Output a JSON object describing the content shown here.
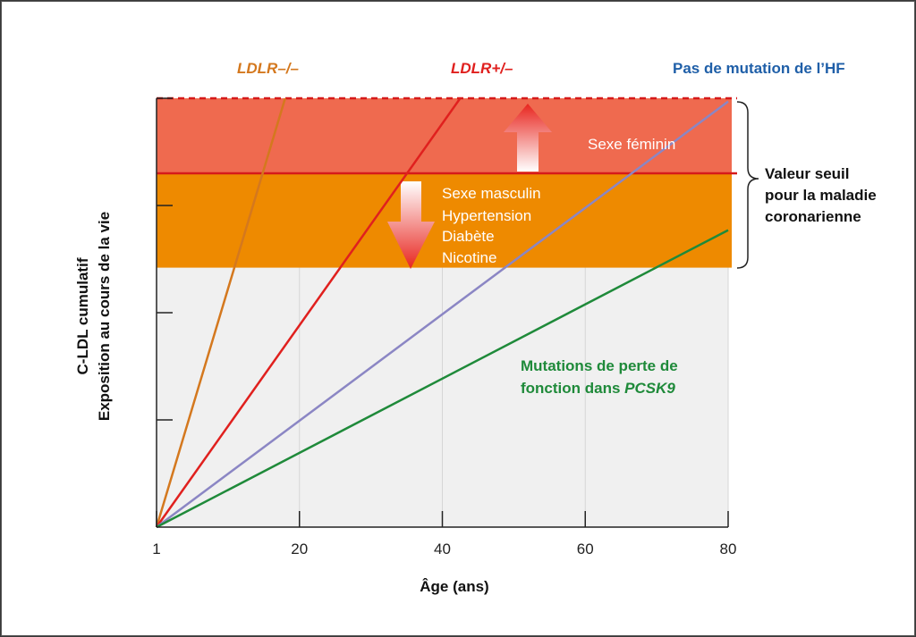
{
  "chart_data": {
    "type": "line",
    "title": "",
    "xlabel": "Âge (ans)",
    "ylabel": "C-LDL cumulatif",
    "ylabel2": "Exposition au cours de la vie",
    "x_ticks": [
      "1",
      "20",
      "40",
      "60",
      "80"
    ],
    "xlim": [
      0,
      80
    ],
    "grid": true,
    "series": [
      {
        "name": "LDLR–/–",
        "color": "#d4781e",
        "points": [
          [
            0,
            0
          ],
          [
            18,
            4.0
          ]
        ]
      },
      {
        "name": "LDLR+/–",
        "color": "#e0201e",
        "points": [
          [
            0,
            0
          ],
          [
            42.5,
            4.0
          ]
        ]
      },
      {
        "name": "Pas de mutation de l’HF",
        "color": "#8b86c4",
        "points": [
          [
            0,
            0
          ],
          [
            80,
            3.97
          ]
        ]
      },
      {
        "name_parts": [
          "Mutations de perte de",
          "fonction dans ",
          "PCSK9"
        ],
        "color": "#1f8a3a",
        "points": [
          [
            0,
            0
          ],
          [
            80,
            2.77
          ]
        ]
      }
    ],
    "bands": {
      "upper": {
        "color": "#ef6a4f",
        "y": [
          3.3,
          4.0
        ]
      },
      "lower": {
        "color": "#ee8a00",
        "y": [
          2.42,
          3.3
        ]
      },
      "threshold_y": 3.3,
      "dashed_y": 4.0
    },
    "annotations": {
      "female": "Sexe féminin",
      "risk_factors": [
        "Sexe masculin",
        "Hypertension",
        "Diabète",
        "Nicotine"
      ],
      "threshold_label": [
        "Valeur seuil",
        "pour la maladie",
        "coronarienne"
      ]
    },
    "colors": {
      "ldlr_hom_label": "#d4781e",
      "ldlr_het_label": "#e0201e",
      "no_mutation_label": "#1f5fa8",
      "pcsk9_label": "#1f8a3a"
    }
  }
}
